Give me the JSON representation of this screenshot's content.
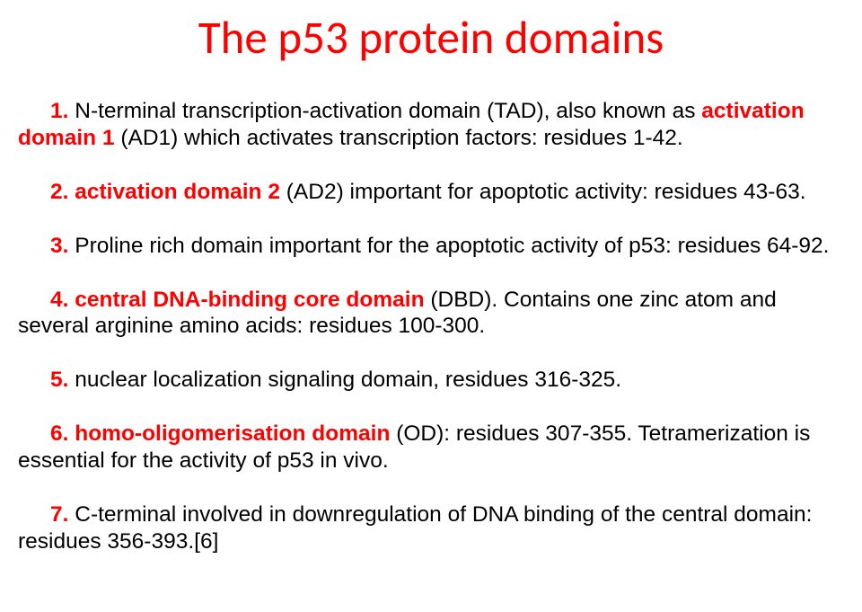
{
  "title": {
    "text": "The p53 protein domains",
    "color": "#ff0000",
    "fontsize": 51,
    "weight": "400"
  },
  "body": {
    "fontsize": 24.5,
    "line_height": 1.22,
    "highlight_color": "#ff0000",
    "highlight_weight": "bold",
    "text_color": "#000000"
  },
  "items": [
    {
      "indent": 36,
      "spans": [
        {
          "t": "1.",
          "hl": true
        },
        {
          "t": " N-terminal transcription-activation domain (TAD), also known as ",
          "hl": false
        },
        {
          "t": "activation domain 1",
          "hl": true
        },
        {
          "t": " (AD1) which activates transcription factors: residues 1-42.",
          "hl": false
        }
      ]
    },
    {
      "indent": 36,
      "spans": [
        {
          "t": "2. activation domain 2",
          "hl": true
        },
        {
          "t": " (AD2) important for apoptotic activity: residues 43-63.",
          "hl": false
        }
      ]
    },
    {
      "indent": 36,
      "spans": [
        {
          "t": "3.",
          "hl": true
        },
        {
          "t": " Proline rich domain important for the apoptotic activity of p53: residues 64-92.",
          "hl": false
        }
      ]
    },
    {
      "indent": 36,
      "spans": [
        {
          "t": "4. central DNA-binding core domain ",
          "hl": true
        },
        {
          "t": "(DBD). Contains one zinc atom and several arginine amino acids: residues 100-300.",
          "hl": false
        }
      ]
    },
    {
      "indent": 36,
      "spans": [
        {
          "t": "5.",
          "hl": true
        },
        {
          "t": " nuclear localization signaling domain, residues 316-325.",
          "hl": false
        }
      ]
    },
    {
      "indent": 36,
      "spans": [
        {
          "t": "6. homo-oligomerisation domain ",
          "hl": true
        },
        {
          "t": "(OD): residues 307-355. Tetramerization is essential for the activity of p53 in vivo.",
          "hl": false
        }
      ]
    },
    {
      "indent": 36,
      "spans": [
        {
          "t": "7.",
          "hl": true
        },
        {
          "t": " C-terminal involved in downregulation of DNA binding of the central domain: residues 356-393.[6]",
          "hl": false
        }
      ]
    }
  ]
}
